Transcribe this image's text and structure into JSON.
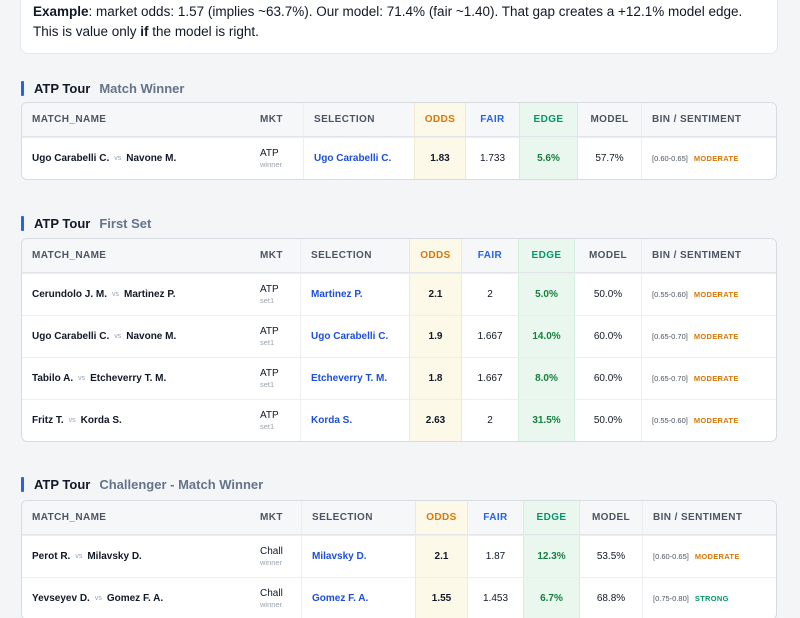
{
  "example": {
    "label": "Example",
    "text_1": ": market odds: 1.57 (implies ~63.7%). Our model: 71.4% (fair ~1.40). That gap creates a +12.1% model edge. This is value only ",
    "if_word": "if",
    "text_2": " the model is right."
  },
  "columns": {
    "match_name": "MATCH_NAME",
    "mkt": "MKT",
    "selection": "SELECTION",
    "odds": "ODDS",
    "fair": "FAIR",
    "edge": "EDGE",
    "model": "MODEL",
    "bin_sentiment": "BIN / SENTIMENT"
  },
  "vs_label": "vs",
  "colors": {
    "accent": "#2563eb",
    "odds_header": "#d97706",
    "fair_header": "#2563eb",
    "edge_header": "#059669",
    "sentiment_moderate": "#d97706",
    "sentiment_strong": "#059669"
  },
  "sections": [
    {
      "tour": "ATP Tour",
      "market": "Match Winner",
      "rows": [
        {
          "player1": "Ugo Carabelli C.",
          "player2": "Navone M.",
          "mkt": "ATP",
          "mkt_sub": "winner",
          "selection": "Ugo Carabelli C.",
          "odds": "1.83",
          "fair": "1.733",
          "edge": "5.6%",
          "model": "57.7%",
          "bin": "[0.60-0.65]",
          "sentiment": "MODERATE"
        }
      ]
    },
    {
      "tour": "ATP Tour",
      "market": "First Set",
      "rows": [
        {
          "player1": "Cerundolo J. M.",
          "player2": "Martinez P.",
          "mkt": "ATP",
          "mkt_sub": "set1",
          "selection": "Martinez P.",
          "odds": "2.1",
          "fair": "2",
          "edge": "5.0%",
          "model": "50.0%",
          "bin": "[0.55-0.60]",
          "sentiment": "MODERATE"
        },
        {
          "player1": "Ugo Carabelli C.",
          "player2": "Navone M.",
          "mkt": "ATP",
          "mkt_sub": "set1",
          "selection": "Ugo Carabelli C.",
          "odds": "1.9",
          "fair": "1.667",
          "edge": "14.0%",
          "model": "60.0%",
          "bin": "[0.65-0.70]",
          "sentiment": "MODERATE"
        },
        {
          "player1": "Tabilo A.",
          "player2": "Etcheverry T. M.",
          "mkt": "ATP",
          "mkt_sub": "set1",
          "selection": "Etcheverry T. M.",
          "odds": "1.8",
          "fair": "1.667",
          "edge": "8.0%",
          "model": "60.0%",
          "bin": "[0.65-0.70]",
          "sentiment": "MODERATE"
        },
        {
          "player1": "Fritz T.",
          "player2": "Korda S.",
          "mkt": "ATP",
          "mkt_sub": "set1",
          "selection": "Korda S.",
          "odds": "2.63",
          "fair": "2",
          "edge": "31.5%",
          "model": "50.0%",
          "bin": "[0.55-0.60]",
          "sentiment": "MODERATE"
        }
      ]
    },
    {
      "tour": "ATP Tour",
      "market": "Challenger - Match Winner",
      "rows": [
        {
          "player1": "Perot R.",
          "player2": "Milavsky D.",
          "mkt": "Chall",
          "mkt_sub": "winner",
          "selection": "Milavsky D.",
          "odds": "2.1",
          "fair": "1.87",
          "edge": "12.3%",
          "model": "53.5%",
          "bin": "[0.60-0.65]",
          "sentiment": "MODERATE"
        },
        {
          "player1": "Yevseyev D.",
          "player2": "Gomez F. A.",
          "mkt": "Chall",
          "mkt_sub": "winner",
          "selection": "Gomez F. A.",
          "odds": "1.55",
          "fair": "1.453",
          "edge": "6.7%",
          "model": "68.8%",
          "bin": "[0.75-0.80]",
          "sentiment": "STRONG"
        }
      ]
    }
  ]
}
